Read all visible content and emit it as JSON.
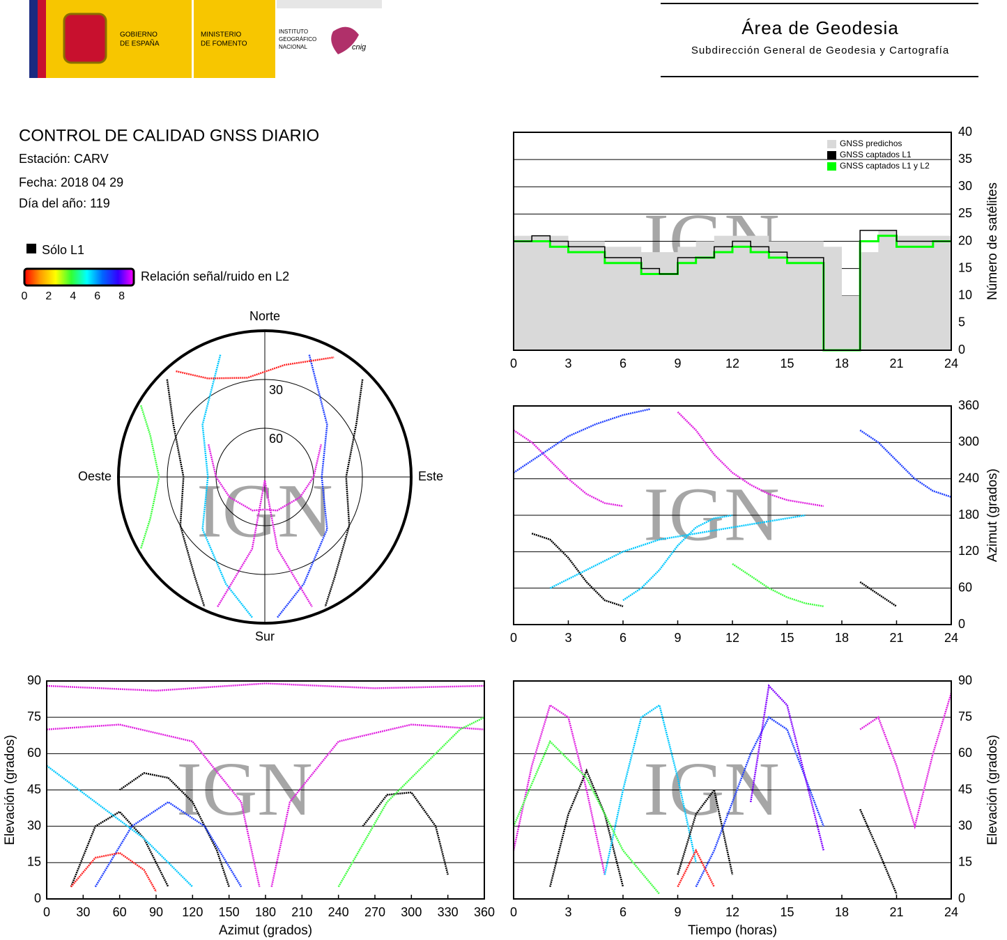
{
  "header": {
    "logos": {
      "gobierno": [
        "GOBIERNO",
        "DE ESPAÑA"
      ],
      "ministerio": [
        "MINISTERIO",
        "DE FOMENTO"
      ],
      "instituto": [
        "INSTITUTO",
        "GEOGRÁFICO",
        "NACIONAL"
      ],
      "cnig": "cnig"
    },
    "title": "Área de Geodesia",
    "subtitle": "Subdirección General de Geodesia y Cartografía"
  },
  "report": {
    "title": "CONTROL DE CALIDAD GNSS DIARIO",
    "station": "Estación: CARV",
    "date": "Fecha: 2018 04 29",
    "day_of_year": "Día del año: 119",
    "legend_l1": "Sólo L1",
    "colorbar_label": "Relación señal/ruido en L2",
    "colorbar_lim": [
      0,
      9
    ],
    "colorbar_ticks": [
      0,
      2,
      4,
      6,
      8
    ],
    "colorbar_colors": [
      "#ff0000",
      "#ff9900",
      "#ffff00",
      "#33ff33",
      "#00ffff",
      "#0066ff",
      "#3300ff",
      "#ff00ff"
    ]
  },
  "watermark": "IGN",
  "chart_data": [
    {
      "type": "polar",
      "theta_ticks": [
        {
          "value": 0,
          "label": "Norte"
        },
        {
          "value": 90,
          "label": "Este"
        },
        {
          "value": 180,
          "label": "Sur"
        },
        {
          "value": 270,
          "label": "Oeste"
        }
      ],
      "rticks": [
        30,
        60
      ],
      "series": [
        {
          "color": "#000000",
          "azimuth": [
            315,
            300,
            270,
            240,
            215,
            205
          ],
          "values": [
            5,
            25,
            40,
            30,
            15,
            2
          ]
        },
        {
          "color": "#000000",
          "azimuth": [
            45,
            60,
            90,
            120,
            145,
            155
          ],
          "values": [
            5,
            25,
            40,
            30,
            15,
            2
          ]
        },
        {
          "color": "#e020e0",
          "azimuth": [
            300,
            270,
            240,
            200,
            180,
            160,
            120,
            90,
            60
          ],
          "values": [
            50,
            60,
            65,
            68,
            70,
            68,
            65,
            60,
            50
          ]
        },
        {
          "color": "#2040ff",
          "azimuth": [
            20,
            50,
            90,
            130,
            160,
            175
          ],
          "values": [
            10,
            40,
            55,
            40,
            20,
            3
          ]
        },
        {
          "color": "#00c8ff",
          "azimuth": [
            340,
            310,
            270,
            230,
            200,
            185
          ],
          "values": [
            10,
            40,
            55,
            40,
            20,
            3
          ]
        },
        {
          "color": "#40ff40",
          "azimuth": [
            300,
            290,
            270,
            250,
            240
          ],
          "values": [
            2,
            15,
            25,
            15,
            2
          ]
        },
        {
          "color": "#e020e0",
          "azimuth": [
            200,
            190,
            180,
            170,
            160
          ],
          "values": [
            5,
            45,
            88,
            45,
            5
          ]
        },
        {
          "color": "#ff2020",
          "azimuth": [
            320,
            330,
            350,
            10,
            30
          ],
          "values": [
            5,
            20,
            28,
            20,
            5
          ]
        }
      ]
    },
    {
      "type": "step",
      "xlim": [
        0,
        24
      ],
      "xticks": [
        0,
        3,
        6,
        9,
        12,
        15,
        18,
        21,
        24
      ],
      "ylim": [
        0,
        40
      ],
      "yticks": [
        0,
        5,
        10,
        15,
        20,
        25,
        30,
        35,
        40
      ],
      "ylabel": "Número de satélites",
      "y_axis_side": "right",
      "grid": true,
      "legend_position": "upper right",
      "x": [
        0,
        1,
        2,
        3,
        4,
        5,
        6,
        7,
        8,
        9,
        10,
        11,
        12,
        13,
        14,
        15,
        16,
        17,
        18,
        19,
        20,
        21,
        22,
        23,
        24
      ],
      "series": [
        {
          "name": "GNSS predichos",
          "color": "#d9d9d9",
          "fill": true,
          "values": [
            21,
            21,
            21,
            20,
            20,
            19,
            19,
            18,
            18,
            19,
            20,
            21,
            21,
            21,
            20,
            20,
            20,
            19,
            10,
            18,
            22,
            21,
            21,
            21,
            21
          ]
        },
        {
          "name": "GNSS captados L1",
          "color": "#000000",
          "values": [
            20,
            21,
            20,
            19,
            19,
            17,
            17,
            15,
            14,
            17,
            17,
            19,
            20,
            19,
            18,
            17,
            17,
            0,
            0,
            22,
            22,
            20,
            20,
            20,
            20
          ]
        },
        {
          "name": "GNSS captados L1 y L2",
          "color": "#00ff00",
          "values": [
            20,
            20,
            19,
            18,
            18,
            16,
            16,
            14,
            14,
            16,
            17,
            18,
            19,
            18,
            17,
            16,
            16,
            0,
            0,
            20,
            21,
            19,
            19,
            20,
            20
          ]
        }
      ]
    },
    {
      "type": "line",
      "xlim": [
        0,
        24
      ],
      "xticks": [
        0,
        3,
        6,
        9,
        12,
        15,
        18,
        21,
        24
      ],
      "ylim": [
        0,
        360
      ],
      "yticks": [
        0,
        60,
        120,
        180,
        240,
        300,
        360
      ],
      "ylabel": "Azimut (grados)",
      "y_axis_side": "right",
      "grid": true,
      "series": [
        {
          "color": "#e020e0",
          "x": [
            0,
            1,
            2,
            3,
            4,
            5,
            6
          ],
          "values": [
            320,
            300,
            270,
            240,
            215,
            200,
            195
          ]
        },
        {
          "color": "#2040ff",
          "x": [
            0,
            1.5,
            3,
            4.5,
            6,
            7.5
          ],
          "values": [
            250,
            280,
            310,
            330,
            345,
            355
          ]
        },
        {
          "color": "#000000",
          "x": [
            1,
            2,
            3,
            4,
            5,
            6
          ],
          "values": [
            150,
            140,
            110,
            70,
            40,
            30
          ]
        },
        {
          "color": "#00c8ff",
          "x": [
            6,
            7,
            8,
            9,
            10,
            11,
            12
          ],
          "values": [
            40,
            60,
            90,
            130,
            160,
            175,
            180
          ]
        },
        {
          "color": "#e020e0",
          "x": [
            9,
            10,
            11,
            12,
            13,
            14,
            15,
            16,
            17
          ],
          "values": [
            350,
            320,
            280,
            250,
            230,
            215,
            205,
            200,
            195
          ]
        },
        {
          "color": "#40ff40",
          "x": [
            12,
            13,
            14,
            15,
            16,
            17
          ],
          "values": [
            100,
            80,
            60,
            45,
            35,
            30
          ]
        },
        {
          "color": "#2040ff",
          "x": [
            19,
            20,
            21,
            22,
            23,
            24
          ],
          "values": [
            320,
            300,
            270,
            240,
            220,
            210
          ]
        },
        {
          "color": "#000000",
          "x": [
            19,
            20,
            21
          ],
          "values": [
            70,
            50,
            30
          ]
        },
        {
          "color": "#00c8ff",
          "x": [
            2,
            4,
            6,
            8,
            10,
            12,
            14,
            16
          ],
          "values": [
            60,
            90,
            120,
            140,
            150,
            160,
            170,
            180
          ]
        }
      ]
    },
    {
      "type": "line",
      "xlim": [
        0,
        360
      ],
      "xticks": [
        0,
        30,
        60,
        90,
        120,
        150,
        180,
        210,
        240,
        270,
        300,
        330,
        360
      ],
      "ylim": [
        0,
        90
      ],
      "yticks": [
        0,
        15,
        30,
        45,
        60,
        75,
        90
      ],
      "xlabel": "Azimut (grados)",
      "ylabel": "Elevación (grados)",
      "y_axis_side": "left",
      "grid": true,
      "series": [
        {
          "color": "#000000",
          "x": [
            20,
            40,
            60,
            80,
            100
          ],
          "values": [
            5,
            30,
            36,
            25,
            5
          ]
        },
        {
          "color": "#000000",
          "x": [
            60,
            80,
            100,
            120,
            140,
            150
          ],
          "values": [
            45,
            52,
            50,
            40,
            20,
            5
          ]
        },
        {
          "color": "#000000",
          "x": [
            260,
            280,
            300,
            320,
            330
          ],
          "values": [
            30,
            43,
            44,
            30,
            10
          ]
        },
        {
          "color": "#e020e0",
          "x": [
            0,
            60,
            120,
            160,
            175
          ],
          "values": [
            70,
            72,
            65,
            40,
            5
          ]
        },
        {
          "color": "#e020e0",
          "x": [
            185,
            200,
            240,
            300,
            360
          ],
          "values": [
            5,
            40,
            65,
            72,
            70
          ]
        },
        {
          "color": "#2040ff",
          "x": [
            40,
            70,
            100,
            130,
            160
          ],
          "values": [
            5,
            30,
            40,
            30,
            5
          ]
        },
        {
          "color": "#00c8ff",
          "x": [
            0,
            40,
            80,
            120
          ],
          "values": [
            55,
            40,
            25,
            5
          ]
        },
        {
          "color": "#ff2020",
          "x": [
            20,
            40,
            60,
            80,
            90
          ],
          "values": [
            5,
            17,
            19,
            12,
            3
          ]
        },
        {
          "color": "#40ff40",
          "x": [
            240,
            280,
            320,
            340,
            360
          ],
          "values": [
            5,
            40,
            60,
            70,
            75
          ]
        },
        {
          "color": "#e020e0",
          "x": [
            0,
            90,
            180,
            270,
            360
          ],
          "values": [
            88,
            86,
            89,
            87,
            88
          ]
        }
      ]
    },
    {
      "type": "line",
      "xlim": [
        0,
        24
      ],
      "xticks": [
        0,
        3,
        6,
        9,
        12,
        15,
        18,
        21,
        24
      ],
      "ylim": [
        0,
        90
      ],
      "yticks": [
        0,
        15,
        30,
        45,
        60,
        75,
        90
      ],
      "xlabel": "Tiempo (horas)",
      "ylabel": "Elevación (grados)",
      "y_axis_side": "right",
      "grid": true,
      "series": [
        {
          "color": "#e020e0",
          "x": [
            0,
            1,
            2,
            3,
            4,
            5
          ],
          "values": [
            20,
            55,
            80,
            75,
            45,
            10
          ]
        },
        {
          "color": "#000000",
          "x": [
            2,
            3,
            4,
            5,
            6
          ],
          "values": [
            5,
            35,
            53,
            35,
            5
          ]
        },
        {
          "color": "#00c8ff",
          "x": [
            5,
            6,
            7,
            8,
            9,
            10
          ],
          "values": [
            10,
            45,
            75,
            80,
            50,
            15
          ]
        },
        {
          "color": "#000000",
          "x": [
            9,
            10,
            11,
            12
          ],
          "values": [
            10,
            35,
            45,
            10
          ]
        },
        {
          "color": "#2040ff",
          "x": [
            10,
            11,
            12,
            13,
            14,
            15,
            16,
            17
          ],
          "values": [
            5,
            20,
            40,
            60,
            75,
            70,
            50,
            30
          ]
        },
        {
          "color": "#40ff40",
          "x": [
            0,
            2,
            4,
            6,
            8
          ],
          "values": [
            30,
            65,
            50,
            20,
            2
          ]
        },
        {
          "color": "#ff2020",
          "x": [
            9,
            10,
            11
          ],
          "values": [
            5,
            20,
            5
          ]
        },
        {
          "color": "#e020e0",
          "x": [
            19,
            20,
            21,
            22,
            23,
            24
          ],
          "values": [
            70,
            75,
            55,
            30,
            60,
            85
          ]
        },
        {
          "color": "#000000",
          "x": [
            19,
            20,
            21
          ],
          "values": [
            37,
            20,
            2
          ]
        },
        {
          "color": "#8000ff",
          "x": [
            13,
            14,
            15,
            16,
            17
          ],
          "values": [
            40,
            88,
            80,
            50,
            20
          ]
        }
      ]
    }
  ]
}
